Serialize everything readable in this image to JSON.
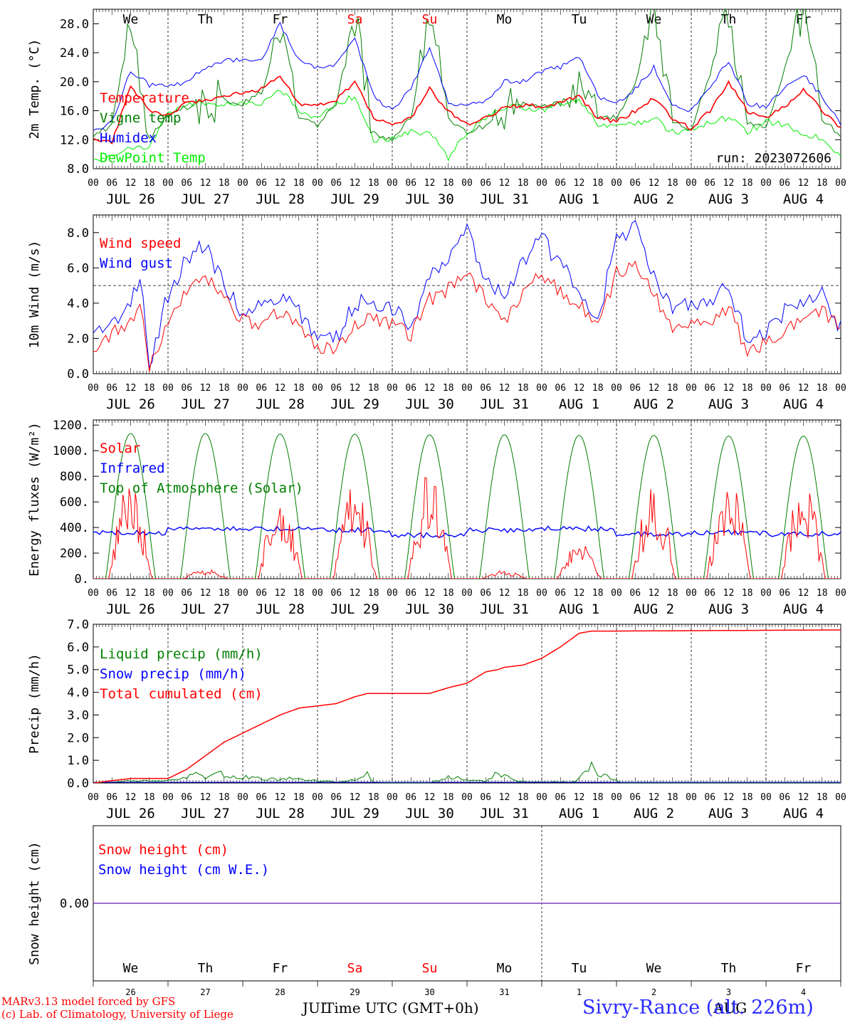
{
  "footer": {
    "model_line": "MARv3.13 model forced by GFS",
    "copyright_line": "(c) Lab. of Climatology, University of Liege",
    "time_axis_label": "Time UTC (GMT+0h)",
    "month_left": "JUL",
    "month_right": "AUG",
    "station": "Sivry-Rance (alt. 226m)"
  },
  "run_label": "run: 2023072606",
  "days": {
    "weekdays": [
      "We",
      "Th",
      "Fr",
      "Sa",
      "Su",
      "Mo",
      "Tu",
      "We",
      "Th",
      "Fr"
    ],
    "weekend_flags": [
      false,
      false,
      false,
      true,
      true,
      false,
      false,
      false,
      false,
      false
    ],
    "date_labels": [
      "JUL 26",
      "JUL 27",
      "JUL 28",
      "JUL 29",
      "JUL 30",
      "JUL 31",
      "AUG  1",
      "AUG  2",
      "AUG  3",
      "AUG  4"
    ],
    "day_numbers": [
      "26",
      "27",
      "28",
      "29",
      "30",
      "31",
      "1",
      "2",
      "3",
      "4"
    ],
    "hour_ticks": [
      "00",
      "06",
      "12",
      "18"
    ],
    "final_tick": "00"
  },
  "colors": {
    "red": "#ff0000",
    "green": "#007f00",
    "blue": "#0000ff",
    "light_green": "#00ee00",
    "purple": "#7f3fbf",
    "weekend": "#ff0000"
  },
  "chart_data": [
    {
      "id": "temperature",
      "type": "line",
      "ylabel": "2m Temp. (°C)",
      "ylim": [
        8,
        30
      ],
      "yticks": [
        "8.0",
        "12.0",
        "16.0",
        "20.0",
        "24.0",
        "28.0"
      ],
      "ytick_values": [
        8,
        12,
        16,
        20,
        24,
        28
      ],
      "x_unit": "hours since 26 Jul 00 UTC",
      "x": [
        0,
        6,
        12,
        18,
        24,
        30,
        36,
        42,
        48,
        54,
        60,
        66,
        72,
        78,
        84,
        90,
        96,
        102,
        108,
        114,
        120,
        126,
        132,
        138,
        144,
        150,
        156,
        162,
        168,
        174,
        180,
        186,
        192,
        198,
        204,
        210,
        216,
        222,
        228,
        234,
        240
      ],
      "series": [
        {
          "name": "Temperature",
          "color": "#ff0000",
          "values": [
            12,
            11.5,
            19.5,
            16,
            15.5,
            17,
            17.5,
            17.8,
            18.5,
            19,
            21,
            17,
            16.8,
            17.5,
            20,
            15,
            14,
            15,
            19,
            16,
            14,
            15,
            16.5,
            16.8,
            16.5,
            17.2,
            18,
            15,
            14.5,
            16,
            17.8,
            15,
            13.5,
            16,
            20,
            16,
            15,
            16.5,
            19,
            16,
            13.5
          ]
        },
        {
          "name": "Vigne temp",
          "color": "#007f00",
          "values": [
            12.5,
            14,
            29,
            12,
            15.5,
            16.5,
            17,
            17.5,
            17,
            18.5,
            27,
            15,
            14,
            17,
            29,
            13,
            12,
            15,
            29,
            15,
            13,
            14,
            16,
            17,
            16.5,
            17,
            19.5,
            15,
            15,
            20,
            30,
            14.5,
            13.5,
            21,
            30,
            14.5,
            13.5,
            22,
            30,
            15,
            12.5
          ]
        },
        {
          "name": "Humidex",
          "color": "#0000ff",
          "values": [
            13,
            14.5,
            21.5,
            19.5,
            19.5,
            20,
            22,
            23,
            23,
            23,
            28,
            23,
            22,
            22.5,
            26,
            18,
            16,
            19,
            25,
            17,
            16.5,
            17.5,
            20,
            20,
            21.5,
            22,
            23.5,
            18,
            17,
            19,
            22,
            17,
            16,
            19,
            23,
            17,
            16.5,
            19,
            21,
            18,
            14
          ]
        },
        {
          "name": "DewPoint Temp",
          "color": "#00ee00",
          "values": [
            9,
            10,
            11,
            11,
            15.5,
            17,
            17,
            17,
            17,
            17,
            19,
            16,
            15,
            17,
            18,
            12,
            12,
            13,
            13,
            9.5,
            13,
            15,
            16.5,
            16.5,
            16,
            17,
            17.5,
            14,
            14,
            14,
            15,
            13,
            13.5,
            14.5,
            15,
            13,
            14.5,
            14,
            13,
            12,
            9.5
          ]
        }
      ]
    },
    {
      "id": "wind",
      "type": "line",
      "ylabel": "10m Wind (m/s)",
      "ylim": [
        0,
        9
      ],
      "yticks": [
        "0.0",
        "2.0",
        "4.0",
        "6.0",
        "8.0"
      ],
      "ytick_values": [
        0,
        2,
        4,
        6,
        8
      ],
      "reference_line": 5,
      "x": [
        0,
        6,
        12,
        15,
        18,
        21,
        24,
        30,
        36,
        42,
        48,
        54,
        60,
        66,
        72,
        78,
        84,
        90,
        96,
        102,
        108,
        114,
        120,
        126,
        132,
        138,
        144,
        150,
        156,
        162,
        168,
        174,
        180,
        186,
        192,
        198,
        204,
        210,
        216,
        222,
        228,
        234,
        240
      ],
      "series": [
        {
          "name": "Wind speed",
          "color": "#ff0000",
          "values": [
            1.5,
            2.3,
            2.8,
            4.2,
            0.3,
            1.5,
            3,
            4.8,
            5.5,
            4.2,
            3,
            2.8,
            3.5,
            2.8,
            1.5,
            1.3,
            2.8,
            3.2,
            2.8,
            2.2,
            4.2,
            4.8,
            5.6,
            4.2,
            3,
            4.5,
            5.7,
            4.6,
            4,
            2.7,
            5.7,
            6.2,
            4.5,
            2.5,
            3,
            2.8,
            3.8,
            1.2,
            1.8,
            2.5,
            3,
            3.5,
            2.8
          ]
        },
        {
          "name": "Wind gust",
          "color": "#0000ff",
          "values": [
            2.1,
            3,
            3.7,
            5.8,
            0.5,
            2.5,
            4.5,
            6.5,
            7.4,
            5,
            3.5,
            3.8,
            4.5,
            3.5,
            2.2,
            2,
            4,
            4,
            3.7,
            2.8,
            5.5,
            6.5,
            8.2,
            5.5,
            4.5,
            6.5,
            7.7,
            6,
            5,
            3,
            7.8,
            8.2,
            5.5,
            3.5,
            4.2,
            4,
            5,
            1.8,
            2.5,
            3.5,
            4.2,
            4.5,
            2.5
          ]
        }
      ]
    },
    {
      "id": "energy",
      "type": "line",
      "ylabel": "Energy fluxes (W/m²)",
      "ylim": [
        0,
        1240
      ],
      "yticks": [
        "0.",
        "200.",
        "400.",
        "600.",
        "800.",
        "1000.",
        "1200."
      ],
      "ytick_values": [
        0,
        200,
        400,
        600,
        800,
        1000,
        1200
      ],
      "series": [
        {
          "name": "Solar",
          "color": "#ff0000",
          "daily_peak": [
            800,
            80,
            680,
            740,
            840,
            65,
            300,
            750,
            830,
            810
          ]
        },
        {
          "name": "Infrared",
          "color": "#0000ff",
          "daily_mean": [
            360,
            390,
            390,
            380,
            340,
            380,
            390,
            350,
            360,
            350
          ]
        },
        {
          "name": "Top of Atmosphere (Solar)",
          "color": "#007f00",
          "daily_peak": [
            1135,
            1135,
            1130,
            1130,
            1125,
            1125,
            1120,
            1120,
            1115,
            1115
          ]
        }
      ]
    },
    {
      "id": "precip",
      "type": "line",
      "ylabel": "Precip (mm/h)",
      "ylim": [
        0,
        7
      ],
      "yticks": [
        "0.0",
        "1.0",
        "2.0",
        "3.0",
        "4.0",
        "5.0",
        "6.0",
        "7.0"
      ],
      "ytick_values": [
        0,
        1,
        2,
        3,
        4,
        5,
        6,
        7
      ],
      "series": [
        {
          "name": "Liquid precip (mm/h)",
          "color": "#007f00",
          "x": [
            0,
            6,
            12,
            18,
            24,
            28,
            32,
            36,
            40,
            44,
            48,
            54,
            60,
            66,
            72,
            78,
            84,
            88,
            90,
            96,
            108,
            114,
            120,
            126,
            130,
            136,
            142,
            148,
            154,
            156,
            160,
            166,
            170,
            174,
            180,
            240
          ],
          "values": [
            0,
            0.05,
            0.1,
            0.1,
            0.1,
            0.2,
            0.5,
            0.3,
            0.5,
            0.3,
            0.3,
            0.2,
            0.2,
            0.2,
            0.1,
            0.05,
            0.15,
            0.5,
            0.05,
            0,
            0,
            0.3,
            0.2,
            0.05,
            0.5,
            0.1,
            0.05,
            0.05,
            0.05,
            0.2,
            0.8,
            0.2,
            0,
            0,
            0,
            0
          ]
        },
        {
          "name": "Snow precip (mm/h)",
          "color": "#0000ff",
          "x": [
            0,
            240
          ],
          "values": [
            0,
            0
          ]
        },
        {
          "name": "Total cumulated (cm)",
          "color": "#ff0000",
          "x": [
            0,
            6,
            12,
            18,
            24,
            30,
            36,
            42,
            48,
            54,
            60,
            66,
            72,
            78,
            84,
            88,
            90,
            96,
            102,
            108,
            114,
            120,
            126,
            130,
            132,
            138,
            144,
            150,
            156,
            160,
            162,
            168,
            240
          ],
          "values": [
            0,
            0.1,
            0.2,
            0.2,
            0.2,
            0.6,
            1.2,
            1.8,
            2.2,
            2.6,
            3,
            3.3,
            3.4,
            3.5,
            3.8,
            3.95,
            3.95,
            3.95,
            3.95,
            3.95,
            4.2,
            4.4,
            4.9,
            5,
            5.1,
            5.2,
            5.5,
            6,
            6.6,
            6.7,
            6.7,
            6.7,
            6.75
          ]
        }
      ]
    },
    {
      "id": "snow",
      "type": "line",
      "ylabel": "Snow height (cm)",
      "ylim": [
        -1,
        1
      ],
      "yticks": [
        "0.00"
      ],
      "ytick_values": [
        0
      ],
      "series": [
        {
          "name": "Snow height (cm)",
          "color": "#ff0000",
          "x": [
            0,
            240
          ],
          "values": [
            0,
            0
          ]
        },
        {
          "name": "Snow height (cm W.E.)",
          "color": "#0000ff",
          "x": [
            0,
            240
          ],
          "values": [
            0,
            0
          ]
        }
      ]
    }
  ]
}
